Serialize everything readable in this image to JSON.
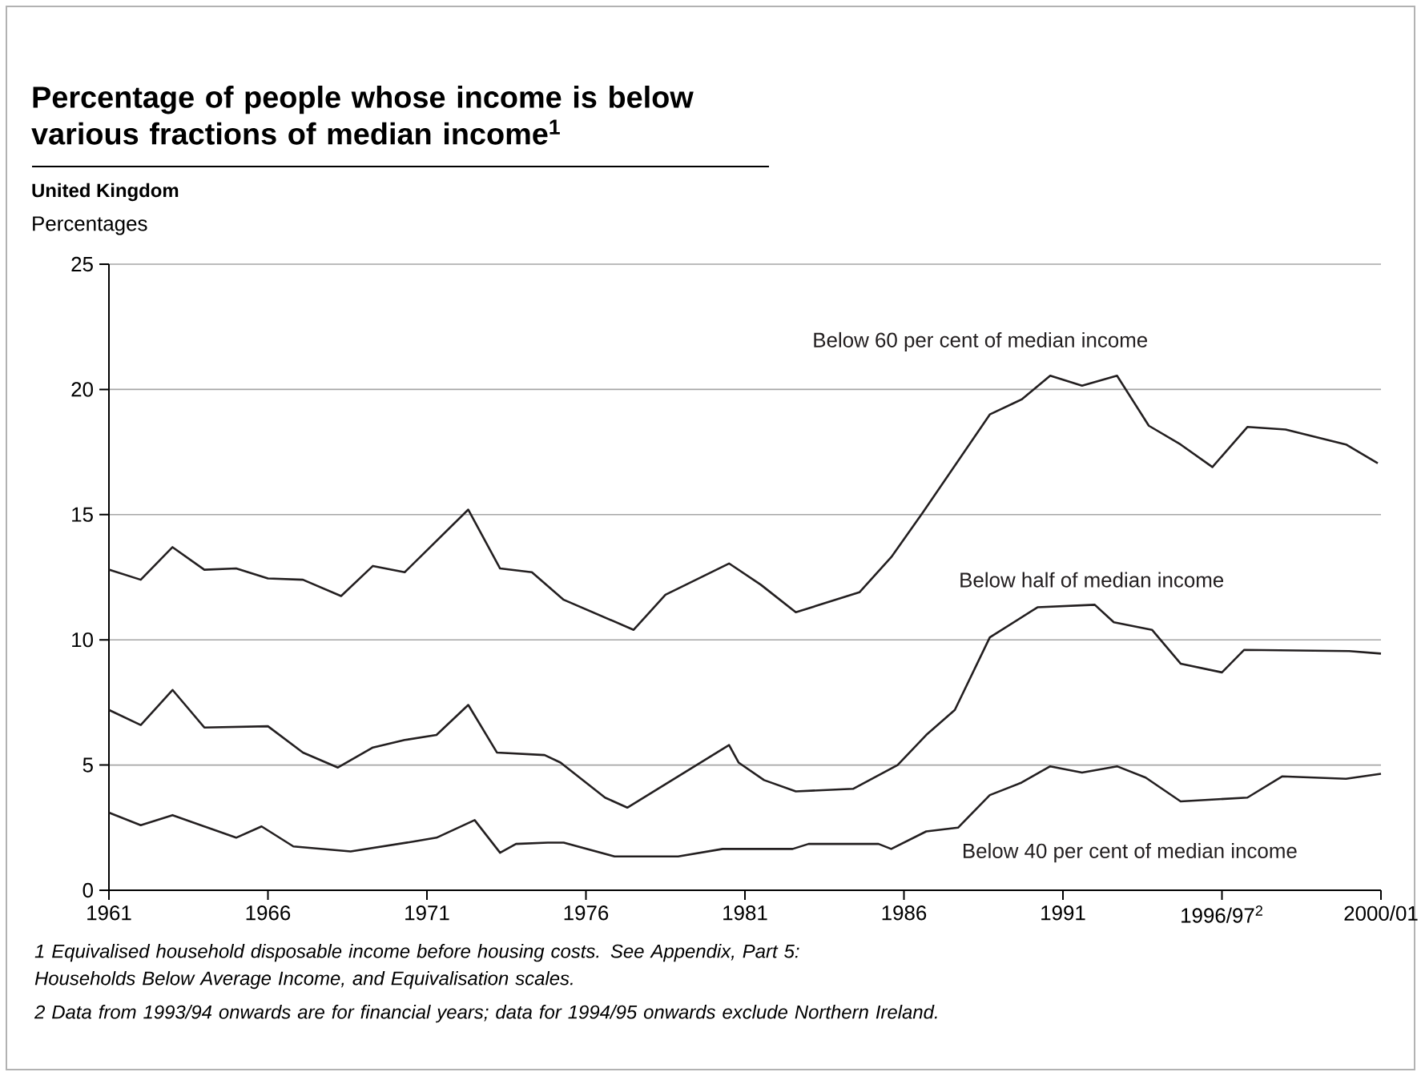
{
  "chart_data": {
    "type": "line",
    "title": "Percentage of people whose income is below various fractions of median income$^{1}$",
    "subtitle": "United Kingdom",
    "ylabel": "Percentages",
    "xlim": [
      1961,
      2001
    ],
    "ylim": [
      0,
      25
    ],
    "xticks": [
      1961,
      1966,
      1971,
      1976,
      1981,
      1986,
      1991,
      {
        "value": 1996,
        "label": "1996/97$^{2}$"
      },
      {
        "value": 2001,
        "label": "2000/01"
      }
    ],
    "yticks": [
      0,
      5,
      10,
      15,
      20,
      25
    ],
    "grid": "y",
    "marker": "none",
    "line_style": "solid",
    "series": [
      {
        "name": "Below 60 per cent of median income",
        "color": "#231f20",
        "x": [
          1961,
          1962,
          1963,
          1964,
          1965,
          1966,
          1967.1,
          1968.3,
          1969.3,
          1970.3,
          1972.3,
          1973.3,
          1974.3,
          1975.3,
          1977.5,
          1978.5,
          1980.5,
          1981.5,
          1982.6,
          1984.6,
          1985.6,
          1986.6,
          1988.7,
          1989.7,
          1990.6,
          1991.6,
          1992.7,
          1993.7,
          1994.7,
          1995.7,
          1996.8,
          1998,
          1999.9,
          2000.9
        ],
        "values": [
          12.8,
          12.4,
          13.7,
          12.8,
          12.85,
          12.45,
          12.4,
          11.75,
          12.95,
          12.7,
          15.2,
          12.85,
          12.7,
          11.6,
          10.4,
          11.8,
          13.05,
          12.2,
          11.1,
          11.9,
          13.3,
          15.1,
          19.0,
          19.6,
          20.55,
          20.15,
          20.55,
          18.55,
          17.8,
          16.9,
          18.5,
          18.4,
          17.8,
          17.05
        ]
      },
      {
        "name": "Below half of median income",
        "color": "#231f20",
        "x": [
          1961,
          1962,
          1963,
          1964,
          1966,
          1967.1,
          1968.2,
          1969.3,
          1970.3,
          1971.3,
          1972.3,
          1973.2,
          1974.7,
          1975.2,
          1976.6,
          1977.3,
          1980.5,
          1980.8,
          1981.6,
          1982.6,
          1984.4,
          1985.8,
          1986.7,
          1987.6,
          1988.7,
          1990.2,
          1992,
          1992.6,
          1993.8,
          1994.7,
          1996,
          1996.7,
          2000,
          2001
        ],
        "values": [
          7.2,
          6.6,
          8.0,
          6.5,
          6.55,
          5.5,
          4.9,
          5.7,
          6.0,
          6.2,
          7.4,
          5.5,
          5.4,
          5.1,
          3.7,
          3.3,
          5.8,
          5.1,
          4.4,
          3.95,
          4.05,
          5.0,
          6.2,
          7.2,
          10.1,
          11.3,
          11.4,
          10.7,
          10.4,
          9.05,
          8.7,
          9.6,
          9.55,
          9.45
        ]
      },
      {
        "name": "Below 40 per cent of median income",
        "color": "#231f20",
        "x": [
          1961,
          1962,
          1963,
          1965,
          1965.8,
          1966.8,
          1968.6,
          1970.6,
          1971.3,
          1972.5,
          1973.3,
          1973.8,
          1974.8,
          1975.3,
          1976.9,
          1978.9,
          1980.3,
          1982.5,
          1983,
          1985.2,
          1985.6,
          1986.7,
          1987.7,
          1988.7,
          1989.7,
          1990.6,
          1991.6,
          1992.7,
          1993.6,
          1994.7,
          1996.8,
          1997.9,
          1999.9,
          2001
        ],
        "values": [
          3.1,
          2.6,
          3.0,
          2.1,
          2.55,
          1.75,
          1.55,
          1.95,
          2.1,
          2.8,
          1.5,
          1.85,
          1.9,
          1.9,
          1.35,
          1.35,
          1.65,
          1.65,
          1.85,
          1.85,
          1.65,
          2.35,
          2.5,
          3.8,
          4.3,
          4.95,
          4.7,
          4.95,
          4.5,
          3.55,
          3.7,
          4.55,
          4.45,
          4.65
        ]
      }
    ],
    "annotations": [
      "1 Equivalised household disposable income before housing costs. See Appendix, Part 5: Households Below Average Income, and Equivalisation scales.",
      "2 Data from 1993/94 onwards are for financial years; data for 1994/95 onwards exclude Northern Ireland."
    ]
  }
}
